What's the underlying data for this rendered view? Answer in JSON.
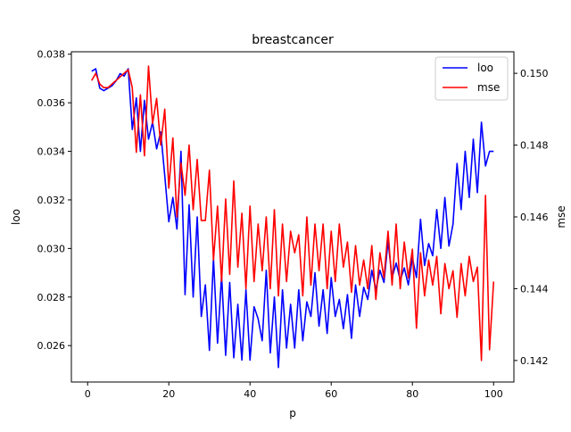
{
  "chart_data": {
    "type": "line",
    "title": "breastcancer",
    "xlabel": "p",
    "ylabel_left": "loo",
    "ylabel_right": "mse",
    "xlim": [
      -4,
      105
    ],
    "ylim_left": [
      0.0245,
      0.0381
    ],
    "ylim_right": [
      0.1414,
      0.1506
    ],
    "x_ticks": [
      0,
      20,
      40,
      60,
      80,
      100
    ],
    "x_tick_labels": [
      "0",
      "20",
      "40",
      "60",
      "80",
      "100"
    ],
    "y_left_ticks": [
      0.026,
      0.028,
      0.03,
      0.032,
      0.034,
      0.036,
      0.038
    ],
    "y_left_tick_labels": [
      "0.026",
      "0.028",
      "0.030",
      "0.032",
      "0.034",
      "0.036",
      "0.038"
    ],
    "y_right_ticks": [
      0.142,
      0.144,
      0.146,
      0.148,
      0.15
    ],
    "y_right_tick_labels": [
      "0.142",
      "0.144",
      "0.146",
      "0.148",
      "0.150"
    ],
    "grid": false,
    "legend": {
      "placement": "top-right",
      "entries": [
        {
          "label": "loo",
          "color": "#0000ff"
        },
        {
          "label": "mse",
          "color": "#ff0000"
        }
      ]
    },
    "series": [
      {
        "name": "loo",
        "axis": "left",
        "color": "#0000ff",
        "x": [
          1,
          2,
          3,
          4,
          5,
          6,
          7,
          8,
          9,
          10,
          11,
          12,
          13,
          14,
          15,
          16,
          17,
          18,
          19,
          20,
          21,
          22,
          23,
          24,
          25,
          26,
          27,
          28,
          29,
          30,
          31,
          32,
          33,
          34,
          35,
          36,
          37,
          38,
          39,
          40,
          41,
          42,
          43,
          44,
          45,
          46,
          47,
          48,
          49,
          50,
          51,
          52,
          53,
          54,
          55,
          56,
          57,
          58,
          59,
          60,
          61,
          62,
          63,
          64,
          65,
          66,
          67,
          68,
          69,
          70,
          71,
          72,
          73,
          74,
          75,
          76,
          77,
          78,
          79,
          80,
          81,
          82,
          83,
          84,
          85,
          86,
          87,
          88,
          89,
          90,
          91,
          92,
          93,
          94,
          95,
          96,
          97,
          98,
          99,
          100
        ],
        "values": [
          0.0373,
          0.0374,
          0.0366,
          0.0365,
          0.0366,
          0.0367,
          0.0369,
          0.0372,
          0.0371,
          0.0374,
          0.0349,
          0.0362,
          0.034,
          0.0361,
          0.0345,
          0.0352,
          0.0341,
          0.0348,
          0.033,
          0.0311,
          0.0321,
          0.0308,
          0.034,
          0.0281,
          0.0318,
          0.028,
          0.0313,
          0.0272,
          0.0285,
          0.0258,
          0.0296,
          0.0261,
          0.0289,
          0.0256,
          0.0286,
          0.0255,
          0.0277,
          0.0254,
          0.0283,
          0.0254,
          0.0276,
          0.0271,
          0.0262,
          0.0291,
          0.0257,
          0.028,
          0.0251,
          0.0283,
          0.0259,
          0.0277,
          0.0259,
          0.0283,
          0.0262,
          0.0278,
          0.0272,
          0.029,
          0.0268,
          0.0283,
          0.0265,
          0.0288,
          0.0272,
          0.0279,
          0.0267,
          0.0281,
          0.0263,
          0.0285,
          0.0272,
          0.0284,
          0.0279,
          0.0291,
          0.0283,
          0.0291,
          0.0286,
          0.0303,
          0.0288,
          0.0294,
          0.0287,
          0.0292,
          0.0285,
          0.0296,
          0.0288,
          0.0312,
          0.0293,
          0.0302,
          0.0297,
          0.0316,
          0.03,
          0.0321,
          0.0301,
          0.031,
          0.0335,
          0.0316,
          0.034,
          0.0321,
          0.0345,
          0.0323,
          0.0352,
          0.0334,
          0.034,
          0.034
        ]
      },
      {
        "name": "mse",
        "axis": "right",
        "color": "#ff0000",
        "x": [
          1,
          2,
          3,
          4,
          5,
          6,
          7,
          8,
          9,
          10,
          11,
          12,
          13,
          14,
          15,
          16,
          17,
          18,
          19,
          20,
          21,
          22,
          23,
          24,
          25,
          26,
          27,
          28,
          29,
          30,
          31,
          32,
          33,
          34,
          35,
          36,
          37,
          38,
          39,
          40,
          41,
          42,
          43,
          44,
          45,
          46,
          47,
          48,
          49,
          50,
          51,
          52,
          53,
          54,
          55,
          56,
          57,
          58,
          59,
          60,
          61,
          62,
          63,
          64,
          65,
          66,
          67,
          68,
          69,
          70,
          71,
          72,
          73,
          74,
          75,
          76,
          77,
          78,
          79,
          80,
          81,
          82,
          83,
          84,
          85,
          86,
          87,
          88,
          89,
          90,
          91,
          92,
          93,
          94,
          95,
          96,
          97,
          98,
          99,
          100
        ],
        "values": [
          0.1498,
          0.15,
          0.1497,
          0.1496,
          0.1496,
          0.1497,
          0.1498,
          0.1499,
          0.15,
          0.1501,
          0.1496,
          0.1478,
          0.1494,
          0.1477,
          0.1502,
          0.1486,
          0.1493,
          0.148,
          0.149,
          0.1468,
          0.1482,
          0.146,
          0.1475,
          0.1466,
          0.148,
          0.1462,
          0.1476,
          0.1459,
          0.1459,
          0.1473,
          0.1448,
          0.1463,
          0.1442,
          0.1465,
          0.1444,
          0.147,
          0.1446,
          0.1461,
          0.144,
          0.1463,
          0.1442,
          0.1458,
          0.1445,
          0.146,
          0.144,
          0.1462,
          0.1438,
          0.1458,
          0.1442,
          0.1456,
          0.145,
          0.1455,
          0.1438,
          0.146,
          0.1441,
          0.1458,
          0.1445,
          0.1458,
          0.144,
          0.1456,
          0.1442,
          0.1458,
          0.1446,
          0.1453,
          0.1439,
          0.1452,
          0.1441,
          0.1448,
          0.144,
          0.1452,
          0.1437,
          0.145,
          0.1443,
          0.1456,
          0.1441,
          0.1458,
          0.144,
          0.1453,
          0.1443,
          0.1451,
          0.1429,
          0.145,
          0.1438,
          0.1448,
          0.1441,
          0.1449,
          0.1433,
          0.1447,
          0.144,
          0.1445,
          0.1432,
          0.1447,
          0.1438,
          0.1449,
          0.1442,
          0.1446,
          0.142,
          0.1466,
          0.1423,
          0.1442
        ]
      }
    ]
  }
}
